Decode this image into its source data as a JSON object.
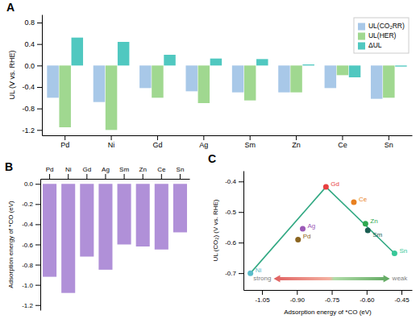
{
  "chart_data": [
    {
      "type": "bar",
      "title": "A",
      "categories": [
        "Pd",
        "Ni",
        "Gd",
        "Ag",
        "Sm",
        "Zn",
        "Ce",
        "Sn"
      ],
      "series": [
        {
          "name": "UL(CO₂RR)",
          "color": "#A8C8E8",
          "values": [
            -0.6,
            -0.68,
            -0.42,
            -0.48,
            -0.5,
            -0.5,
            -0.42,
            -0.62
          ]
        },
        {
          "name": "UL(HER)",
          "color": "#A0D890",
          "values": [
            -1.15,
            -1.2,
            -0.6,
            -0.7,
            -0.65,
            -0.5,
            -0.18,
            -0.6
          ]
        },
        {
          "name": "ΔUL",
          "color": "#50C8C0",
          "values": [
            0.52,
            0.44,
            0.2,
            0.13,
            0.12,
            0.02,
            -0.22,
            -0.02
          ]
        }
      ],
      "ylabel": "UL (V vs. RHE)",
      "ylim": [
        -1.3,
        0.95
      ],
      "yticks": [
        -1.2,
        -0.8,
        -0.4,
        {
          "value": 0.0,
          "label": "0.0"
        },
        0.4,
        0.8
      ],
      "legend": "upper right"
    },
    {
      "type": "bar",
      "title": "B",
      "categories": [
        "Pd",
        "Ni",
        "Gd",
        "Ag",
        "Sm",
        "Zn",
        "Ce",
        "Sn"
      ],
      "values": [
        -0.92,
        -1.08,
        -0.72,
        -0.85,
        -0.6,
        -0.62,
        -0.65,
        -0.48
      ],
      "color": "#B090D8",
      "ylabel": "Adsorption energy of *CO (eV)",
      "ylim": [
        -1.25,
        0.05
      ],
      "yticks": [
        -1.2,
        {
          "value": -1.0,
          "label": "-1.0"
        },
        -0.8,
        -0.6,
        -0.4,
        -0.2,
        {
          "value": 0.0,
          "label": "0.0"
        }
      ]
    },
    {
      "type": "scatter",
      "title": "C",
      "series": [
        {
          "type": "line",
          "color": "#30A882",
          "x": [
            -1.1,
            -0.775
          ],
          "values": [
            -0.7,
            -0.418
          ]
        },
        {
          "type": "line",
          "color": "#30A882",
          "x": [
            -0.775,
            -0.48
          ],
          "values": [
            -0.418,
            -0.635
          ]
        },
        {
          "type": "scatter",
          "name": "Ni",
          "color": "#5ABCCA",
          "x": [
            -1.1
          ],
          "values": [
            -0.7
          ]
        },
        {
          "type": "scatter",
          "name": "Pd",
          "color": "#8B6520",
          "x": [
            -0.895
          ],
          "values": [
            -0.59
          ]
        },
        {
          "type": "scatter",
          "name": "Ag",
          "color": "#9B59B6",
          "x": [
            -0.875
          ],
          "values": [
            -0.555
          ]
        },
        {
          "type": "scatter",
          "name": "Gd",
          "color": "#E84040",
          "x": [
            -0.775
          ],
          "values": [
            -0.418
          ]
        },
        {
          "type": "scatter",
          "name": "Ce",
          "color": "#E88020",
          "x": [
            -0.655
          ],
          "values": [
            -0.468
          ]
        },
        {
          "type": "scatter",
          "name": "Zn",
          "color": "#2EA850",
          "x": [
            -0.605
          ],
          "values": [
            -0.538
          ]
        },
        {
          "type": "scatter",
          "name": "Sm",
          "color": "#1A5E52",
          "x": [
            -0.595
          ],
          "values": [
            -0.56
          ]
        },
        {
          "type": "scatter",
          "name": "Sn",
          "color": "#38C898",
          "x": [
            -0.48
          ],
          "values": [
            -0.635
          ]
        }
      ],
      "xlabel": "Adsorption energy of *CO (eV)",
      "ylabel": "UL (CO₂) (V vs. RHE)",
      "xlim": [
        -1.13,
        -0.405
      ],
      "ylim": [
        -0.755,
        -0.365
      ],
      "xticks": [
        -1.05,
        {
          "value": -0.9,
          "label": "-0.90"
        },
        -0.75,
        {
          "value": -0.6,
          "label": "-0.60"
        },
        -0.45
      ],
      "yticks": [
        -0.7,
        -0.6,
        -0.5,
        -0.4
      ],
      "annotations": [
        {
          "text": "strong",
          "x": -1.0,
          "y": -0.718
        },
        {
          "text": "weak",
          "x": -0.5,
          "y": -0.718
        }
      ]
    }
  ]
}
